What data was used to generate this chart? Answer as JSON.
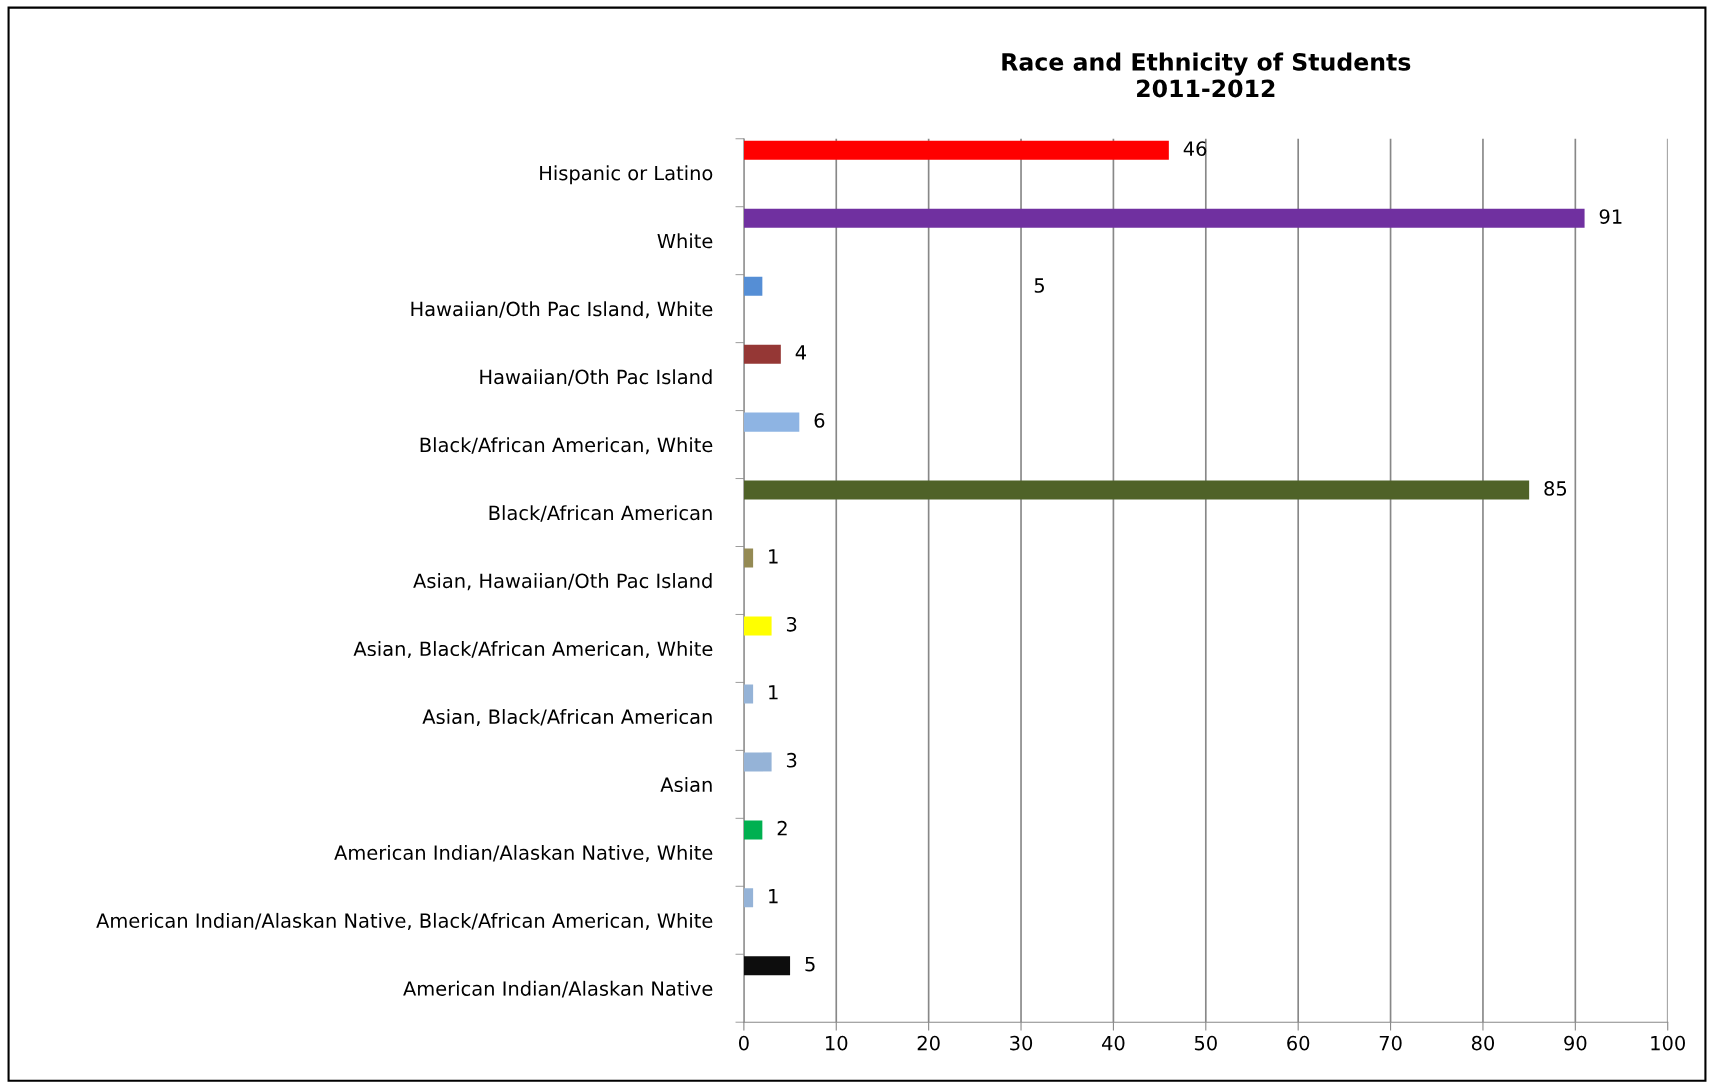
{
  "chart_data": {
    "type": "bar",
    "orientation": "horizontal",
    "title": "Race and Ethnicity of Students\n2011-2012",
    "categories": [
      "Hispanic or Latino",
      "White",
      "Hawaiian/Oth Pac Island, White",
      "Hawaiian/Oth Pac Island",
      "Black/African American, White",
      "Black/African American",
      "Asian, Hawaiian/Oth Pac Island",
      "Asian, Black/African American, White",
      "Asian, Black/African American",
      "Asian",
      "American Indian/Alaskan Native, White",
      "American Indian/Alaskan Native, Black/African American, White",
      "American Indian/Alaskan Native"
    ],
    "values": [
      46,
      91,
      2,
      4,
      6,
      85,
      1,
      3,
      1,
      3,
      2,
      1,
      5
    ],
    "value_labels": [
      "46",
      "91",
      null,
      "4",
      "6",
      "85",
      "1",
      "3",
      "1",
      "3",
      "2",
      "1",
      "5"
    ],
    "colors": [
      "#ff0000",
      "#7030a0",
      "#558ed5",
      "#953735",
      "#8eb4e3",
      "#4f6228",
      "#948a54",
      "#ffff00",
      "#95b3d7",
      "#95b3d7",
      "#00b050",
      "#95b3d7",
      "#0d0d0d"
    ],
    "annotations": [
      "5"
    ],
    "xlim": [
      0,
      100
    ],
    "xticks": [
      0,
      10,
      20,
      30,
      40,
      50,
      60,
      70,
      80,
      90,
      100
    ],
    "grid": "x"
  }
}
